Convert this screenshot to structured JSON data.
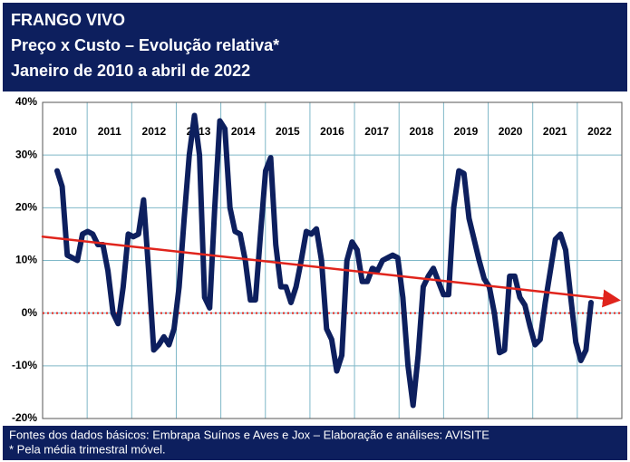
{
  "chart_data": {
    "type": "line",
    "title": "FRANGO VIVO",
    "subtitle": "Preço x Custo – Evolução relativa*",
    "period": "Janeiro de 2010 a abril de 2022",
    "year_labels": [
      "2010",
      "2011",
      "2012",
      "2013",
      "2014",
      "2015",
      "2016",
      "2017",
      "2018",
      "2019",
      "2020",
      "2021",
      "2022"
    ],
    "ylim": [
      -20,
      40
    ],
    "yticks": [
      {
        "value": -20,
        "label": "-20%"
      },
      {
        "value": -10,
        "label": "-10%"
      },
      {
        "value": 0,
        "label": "0%"
      },
      {
        "value": 10,
        "label": "10%"
      },
      {
        "value": 20,
        "label": "20%"
      },
      {
        "value": 30,
        "label": "30%"
      },
      {
        "value": 40,
        "label": "40%"
      }
    ],
    "grid": true,
    "reference_line": 0,
    "reference_color": "#e0241c",
    "series": [
      {
        "color": "#0d1f5e",
        "values": [
          27,
          24,
          11,
          10.5,
          10,
          15,
          15.5,
          15,
          13,
          13,
          8,
          0,
          -2,
          5,
          15,
          14.5,
          15,
          21.5,
          8,
          -7,
          -6,
          -4.5,
          -6,
          -3,
          5,
          18,
          30,
          37.5,
          30,
          3,
          1,
          20,
          36.5,
          35,
          20,
          15.5,
          15,
          10,
          2.5,
          2.5,
          15,
          27,
          29.5,
          13,
          5,
          5,
          2,
          5,
          10,
          15.5,
          15,
          16,
          10,
          -3,
          -5,
          -11,
          -8,
          10,
          13.5,
          12,
          6,
          6,
          8.5,
          8,
          10,
          10.5,
          11,
          10.5,
          3,
          -10,
          -17.5,
          -8,
          5,
          7,
          8.5,
          6,
          3.5,
          3.5,
          20,
          27,
          26.5,
          18,
          14,
          10,
          6.5,
          5,
          0,
          -7.5,
          -7,
          7,
          7,
          3,
          1.5,
          -2.5,
          -6,
          -5,
          2,
          8,
          14,
          15,
          12,
          3,
          -5.5,
          -9,
          -7,
          2
        ]
      },
      {
        "type": "trend",
        "color": "#e0241c",
        "values": [
          14.5,
          2.5
        ]
      }
    ],
    "source": "Fontes dos dados básicos: Embrapa Suínos e Aves e Jox – Elaboração e análises: AVISITE",
    "note": "* Pela média trimestral móvel."
  }
}
